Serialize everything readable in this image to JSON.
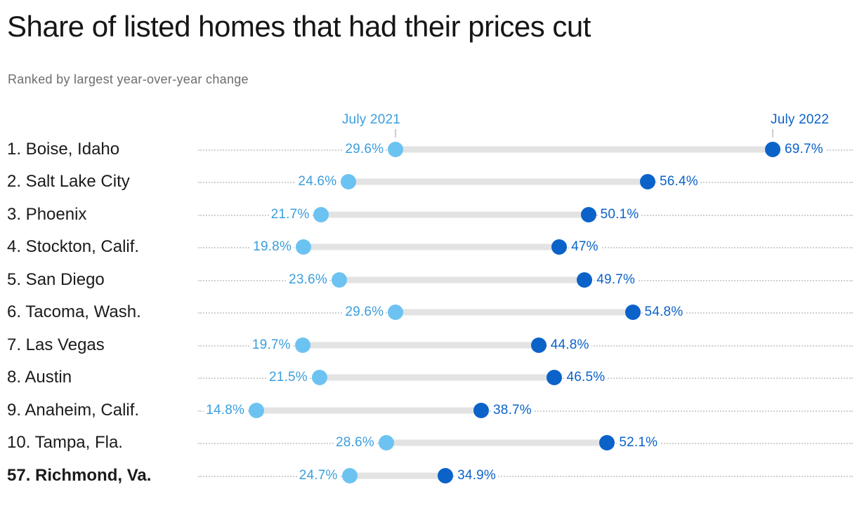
{
  "header": {
    "title": "Share of listed homes that had their prices cut",
    "subtitle": "Ranked by largest year-over-year change"
  },
  "legend": {
    "left_label": "July 2021",
    "right_label": "July 2022"
  },
  "colors": {
    "title": "#161616",
    "subtitle": "#6d6d6d",
    "row_label": "#1b1b1b",
    "dot_2021": "#6cc3f1",
    "dot_2022": "#0b62c9",
    "value_label_2021": "#3b9ede",
    "value_label_2022": "#0b62c9",
    "connector": "#e3e3e3",
    "dotted_line": "#cfcfcf"
  },
  "chart_data": {
    "type": "dumbbell",
    "title": "Share of listed homes that had their prices cut",
    "subtitle": "Ranked by largest year-over-year change",
    "series_names": [
      "July 2021",
      "July 2022"
    ],
    "unit": "%",
    "xlim": [
      0,
      78
    ],
    "grid": false,
    "rows": [
      {
        "label": "1. Boise, Idaho",
        "v2021": 29.6,
        "v2022": 69.7,
        "label2021": "29.6%",
        "label2022": "69.7%",
        "bold": false
      },
      {
        "label": "2. Salt Lake City",
        "v2021": 24.6,
        "v2022": 56.4,
        "label2021": "24.6%",
        "label2022": "56.4%",
        "bold": false
      },
      {
        "label": "3. Phoenix",
        "v2021": 21.7,
        "v2022": 50.1,
        "label2021": "21.7%",
        "label2022": "50.1%",
        "bold": false
      },
      {
        "label": "4. Stockton, Calif.",
        "v2021": 19.8,
        "v2022": 47.0,
        "label2021": "19.8%",
        "label2022": "47%",
        "bold": false
      },
      {
        "label": "5. San Diego",
        "v2021": 23.6,
        "v2022": 49.7,
        "label2021": "23.6%",
        "label2022": "49.7%",
        "bold": false
      },
      {
        "label": "6. Tacoma, Wash.",
        "v2021": 29.6,
        "v2022": 54.8,
        "label2021": "29.6%",
        "label2022": "54.8%",
        "bold": false
      },
      {
        "label": "7. Las Vegas",
        "v2021": 19.7,
        "v2022": 44.8,
        "label2021": "19.7%",
        "label2022": "44.8%",
        "bold": false
      },
      {
        "label": "8. Austin",
        "v2021": 21.5,
        "v2022": 46.5,
        "label2021": "21.5%",
        "label2022": "46.5%",
        "bold": false
      },
      {
        "label": "9. Anaheim, Calif.",
        "v2021": 14.8,
        "v2022": 38.7,
        "label2021": "14.8%",
        "label2022": "38.7%",
        "bold": false
      },
      {
        "label": "10. Tampa, Fla.",
        "v2021": 28.6,
        "v2022": 52.1,
        "label2021": "28.6%",
        "label2022": "52.1%",
        "bold": false
      },
      {
        "label": "57. Richmond, Va.",
        "v2021": 24.7,
        "v2022": 34.9,
        "label2021": "24.7%",
        "label2022": "34.9%",
        "bold": true
      }
    ]
  }
}
